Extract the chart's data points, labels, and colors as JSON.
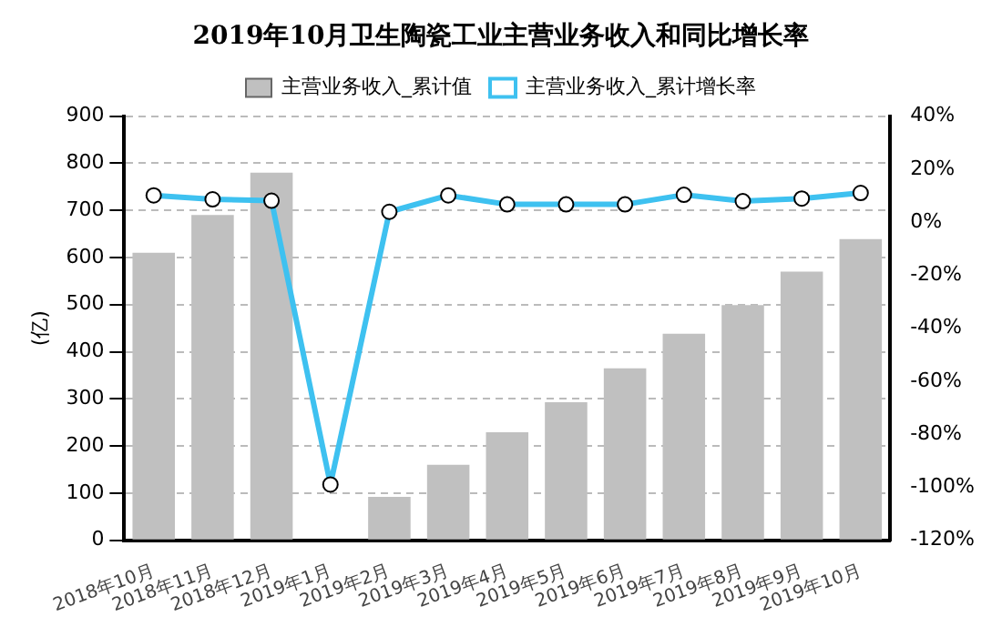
{
  "chart_data": {
    "type": "bar",
    "title": "2019年10月卫生陶瓷工业主营业务收入和同比增长率",
    "ylabel": "(亿)",
    "categories": [
      "2018年10月",
      "2018年11月",
      "2018年12月",
      "2019年1月",
      "2019年2月",
      "2019年3月",
      "2019年4月",
      "2019年5月",
      "2019年6月",
      "2019年7月",
      "2019年8月",
      "2019年9月",
      "2019年10月"
    ],
    "series": [
      {
        "name": "主营业务收入_累计值",
        "color": "#c0c0c0",
        "values": [
          610,
          690,
          780,
          null,
          92,
          160,
          229,
          293,
          365,
          438,
          499,
          570,
          639
        ]
      },
      {
        "name": "主营业务收入_累计增长率",
        "type": "line",
        "axis": "y2",
        "color": "#3ec1f0",
        "marker": "circle",
        "values": [
          10.1,
          8.6,
          8.1,
          -99,
          3.9,
          10.1,
          6.7,
          6.7,
          6.7,
          10.3,
          7.9,
          8.9,
          11
        ]
      }
    ],
    "ylim": [
      0,
      900
    ],
    "yticks": [
      0,
      100,
      200,
      300,
      400,
      500,
      600,
      700,
      800,
      900
    ],
    "y2lim": [
      -120,
      40
    ],
    "y2ticks": [
      {
        "value": -120,
        "label": "-120%"
      },
      {
        "value": -100,
        "label": "-100%"
      },
      {
        "value": -80,
        "label": "-80%"
      },
      {
        "value": -60,
        "label": "-60%"
      },
      {
        "value": -40,
        "label": "-40%"
      },
      {
        "value": -20,
        "label": "-20%"
      },
      {
        "value": 0,
        "label": "0%"
      },
      {
        "value": 20,
        "label": "20%"
      },
      {
        "value": 40,
        "label": "40%"
      }
    ],
    "grid": "y",
    "legend": "top"
  }
}
